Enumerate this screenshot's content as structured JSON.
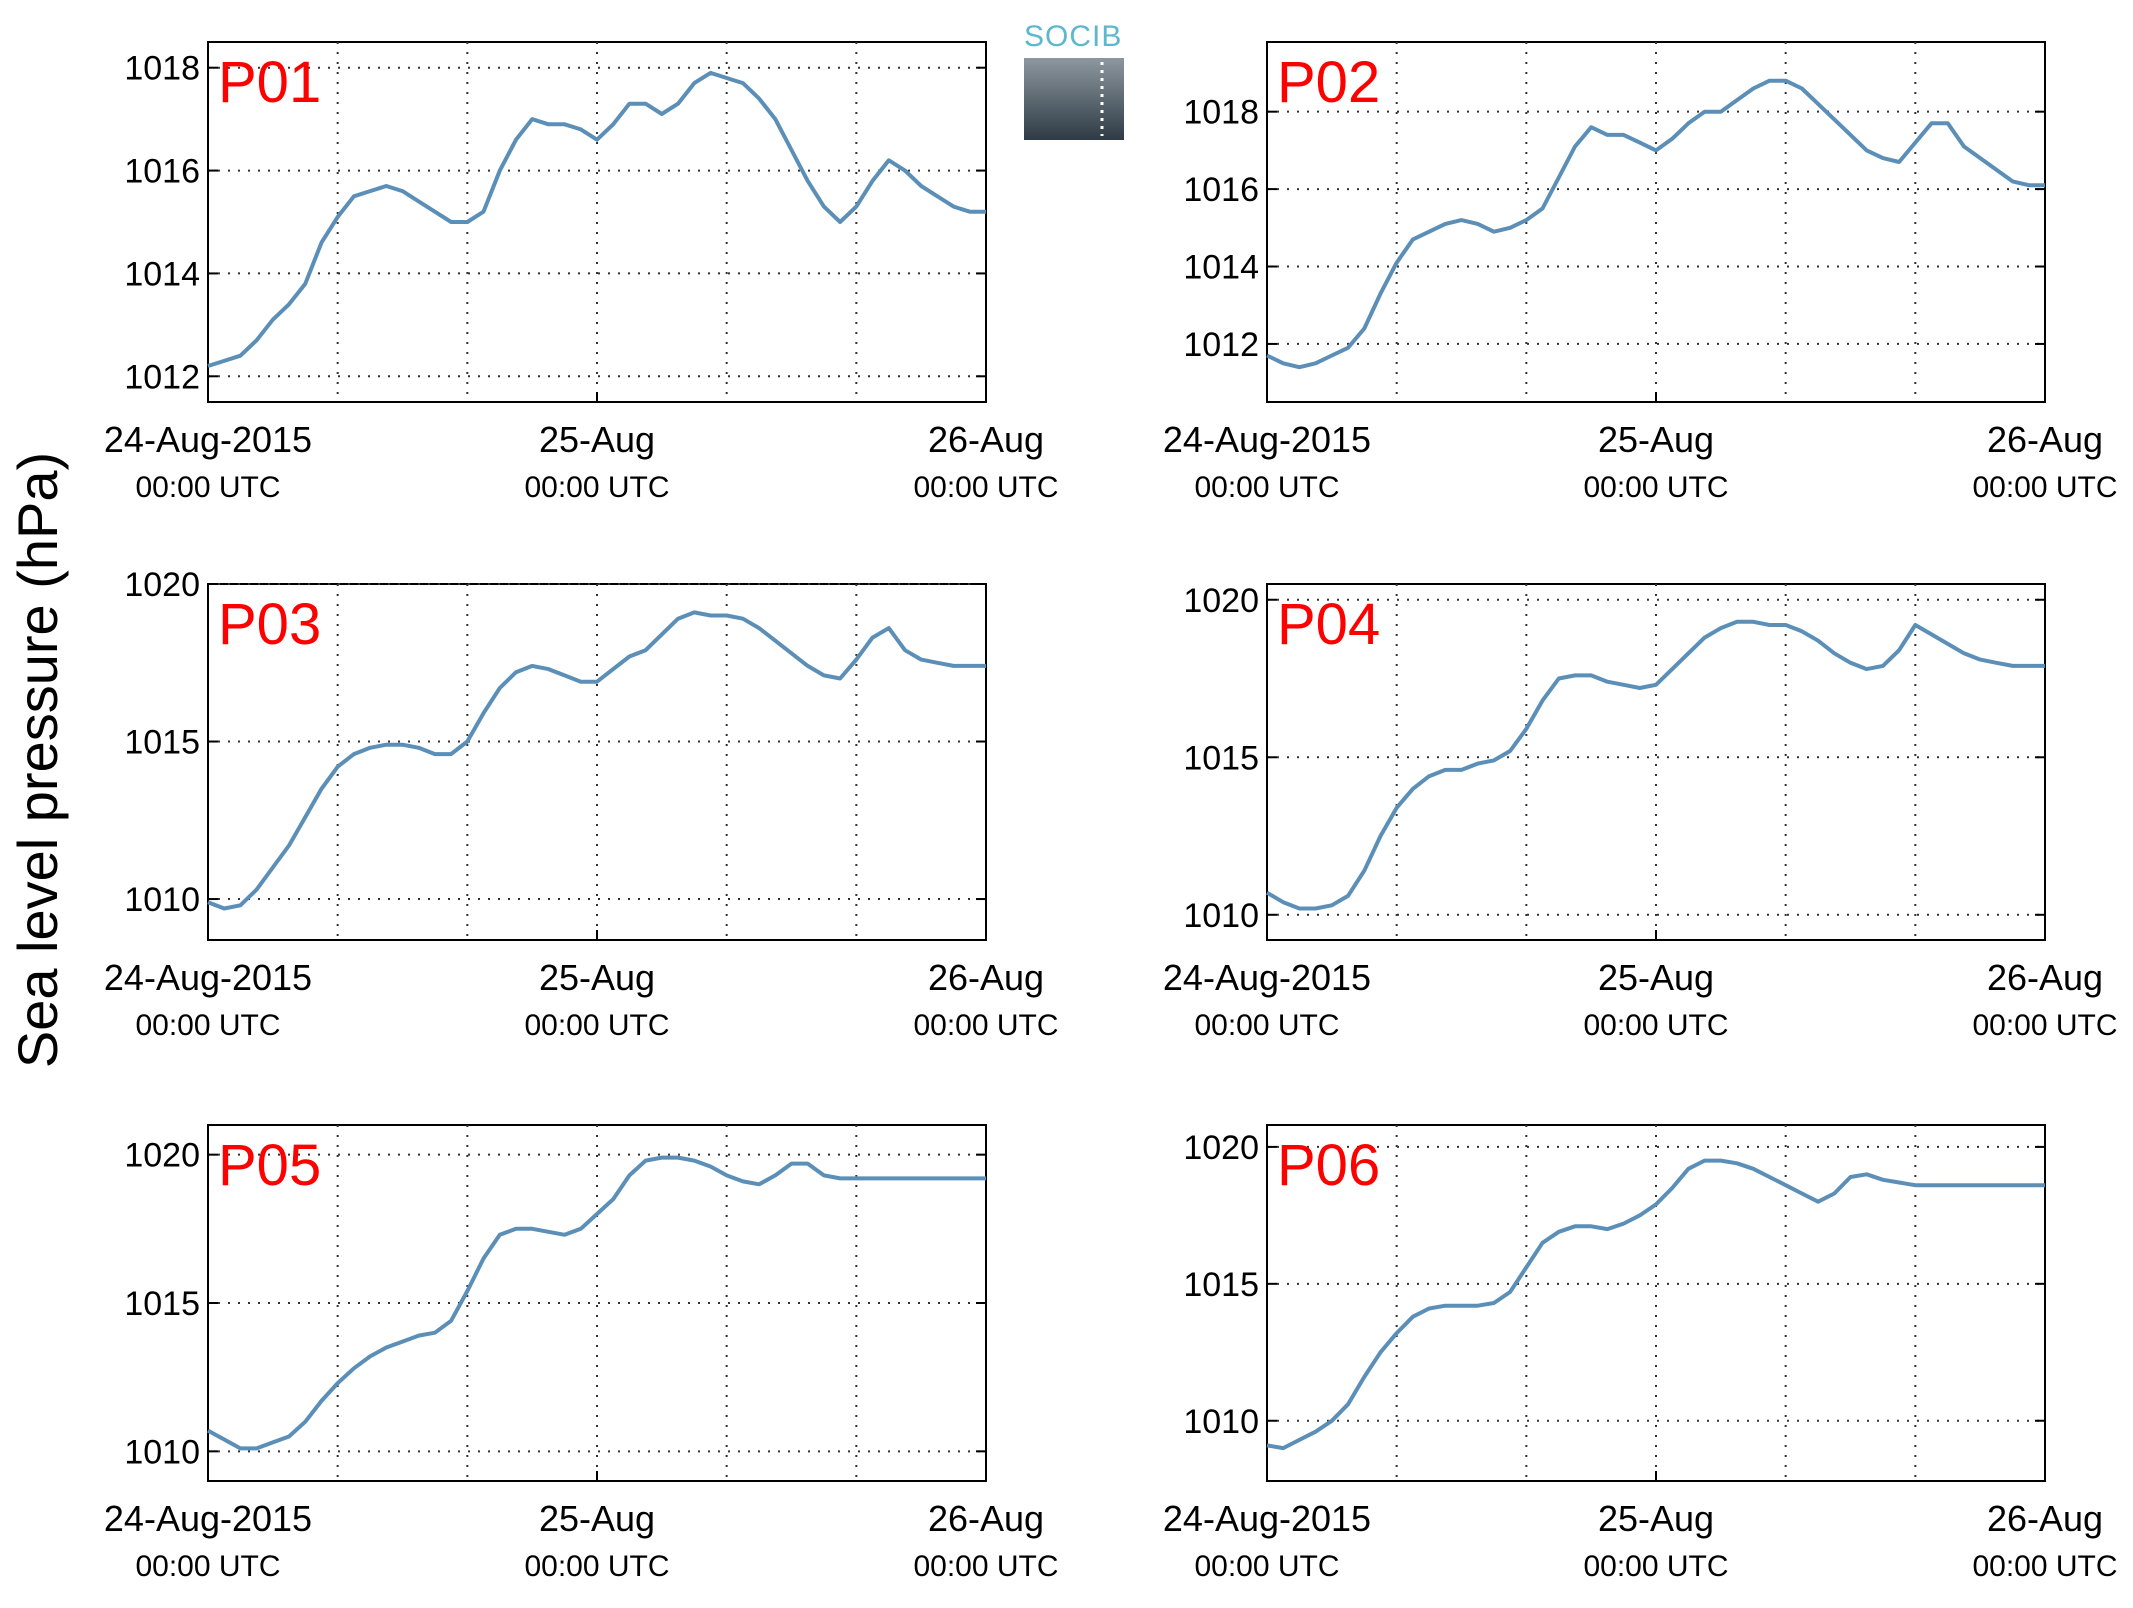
{
  "ylabel": "Sea level pressure (hPa)",
  "logo": {
    "text": "SOCIB",
    "text_color": "#5bb8cf",
    "block_top": "#8d979f",
    "block_bottom": "#2e3b45"
  },
  "colors": {
    "series": "#5b8fb8",
    "grid": "#333333",
    "panel_label": "#ff0000"
  },
  "x_ticks": [
    {
      "date": "24-Aug-2015",
      "time": "00:00 UTC",
      "x": 0
    },
    {
      "date": "25-Aug",
      "time": "00:00 UTC",
      "x": 24
    },
    {
      "date": "26-Aug",
      "time": "00:00 UTC",
      "x": 48
    }
  ],
  "chart_data": [
    {
      "type": "line",
      "name": "P01",
      "x_unit": "hours since 24-Aug-2015 00:00 UTC",
      "xlim": [
        0,
        48
      ],
      "ylim": [
        1011.5,
        1018.5
      ],
      "yticks": [
        1012,
        1014,
        1016,
        1018
      ],
      "grid": true,
      "x": [
        0,
        1,
        2,
        3,
        4,
        5,
        6,
        7,
        8,
        9,
        10,
        11,
        12,
        13,
        14,
        15,
        16,
        17,
        18,
        19,
        20,
        21,
        22,
        23,
        24,
        25,
        26,
        27,
        28,
        29,
        30,
        31,
        32,
        33,
        34,
        35,
        36,
        37,
        38,
        39,
        40,
        41,
        42,
        43,
        44,
        45,
        46,
        47,
        48
      ],
      "y": [
        1012.2,
        1012.3,
        1012.4,
        1012.7,
        1013.1,
        1013.4,
        1013.8,
        1014.6,
        1015.1,
        1015.5,
        1015.6,
        1015.7,
        1015.6,
        1015.4,
        1015.2,
        1015.0,
        1015.0,
        1015.2,
        1016.0,
        1016.6,
        1017.0,
        1016.9,
        1016.9,
        1016.8,
        1016.6,
        1016.9,
        1017.3,
        1017.3,
        1017.1,
        1017.3,
        1017.7,
        1017.9,
        1017.8,
        1017.7,
        1017.4,
        1017.0,
        1016.4,
        1015.8,
        1015.3,
        1015.0,
        1015.3,
        1015.8,
        1016.2,
        1016.0,
        1015.7,
        1015.5,
        1015.3,
        1015.2,
        1015.2
      ]
    },
    {
      "type": "line",
      "name": "P02",
      "x_unit": "hours since 24-Aug-2015 00:00 UTC",
      "xlim": [
        0,
        48
      ],
      "ylim": [
        1010.5,
        1019.8
      ],
      "yticks": [
        1012,
        1014,
        1016,
        1018
      ],
      "grid": true,
      "x": [
        0,
        1,
        2,
        3,
        4,
        5,
        6,
        7,
        8,
        9,
        10,
        11,
        12,
        13,
        14,
        15,
        16,
        17,
        18,
        19,
        20,
        21,
        22,
        23,
        24,
        25,
        26,
        27,
        28,
        29,
        30,
        31,
        32,
        33,
        34,
        35,
        36,
        37,
        38,
        39,
        40,
        41,
        42,
        43,
        44,
        45,
        46,
        47,
        48
      ],
      "y": [
        1011.7,
        1011.5,
        1011.4,
        1011.5,
        1011.7,
        1011.9,
        1012.4,
        1013.3,
        1014.1,
        1014.7,
        1014.9,
        1015.1,
        1015.2,
        1015.1,
        1014.9,
        1015.0,
        1015.2,
        1015.5,
        1016.3,
        1017.1,
        1017.6,
        1017.4,
        1017.4,
        1017.2,
        1017.0,
        1017.3,
        1017.7,
        1018.0,
        1018.0,
        1018.3,
        1018.6,
        1018.8,
        1018.8,
        1018.6,
        1018.2,
        1017.8,
        1017.4,
        1017.0,
        1016.8,
        1016.7,
        1017.2,
        1017.7,
        1017.7,
        1017.1,
        1016.8,
        1016.5,
        1016.2,
        1016.1,
        1016.1
      ]
    },
    {
      "type": "line",
      "name": "P03",
      "x_unit": "hours since 24-Aug-2015 00:00 UTC",
      "xlim": [
        0,
        48
      ],
      "ylim": [
        1008.7,
        1020.0
      ],
      "yticks": [
        1010,
        1015,
        1020
      ],
      "grid": true,
      "x": [
        0,
        1,
        2,
        3,
        4,
        5,
        6,
        7,
        8,
        9,
        10,
        11,
        12,
        13,
        14,
        15,
        16,
        17,
        18,
        19,
        20,
        21,
        22,
        23,
        24,
        25,
        26,
        27,
        28,
        29,
        30,
        31,
        32,
        33,
        34,
        35,
        36,
        37,
        38,
        39,
        40,
        41,
        42,
        43,
        44,
        45,
        46,
        47,
        48
      ],
      "y": [
        1009.9,
        1009.7,
        1009.8,
        1010.3,
        1011.0,
        1011.7,
        1012.6,
        1013.5,
        1014.2,
        1014.6,
        1014.8,
        1014.9,
        1014.9,
        1014.8,
        1014.6,
        1014.6,
        1015.0,
        1015.9,
        1016.7,
        1017.2,
        1017.4,
        1017.3,
        1017.1,
        1016.9,
        1016.9,
        1017.3,
        1017.7,
        1017.9,
        1018.4,
        1018.9,
        1019.1,
        1019.0,
        1019.0,
        1018.9,
        1018.6,
        1018.2,
        1017.8,
        1017.4,
        1017.1,
        1017.0,
        1017.6,
        1018.3,
        1018.6,
        1017.9,
        1017.6,
        1017.5,
        1017.4,
        1017.4,
        1017.4
      ]
    },
    {
      "type": "line",
      "name": "P04",
      "x_unit": "hours since 24-Aug-2015 00:00 UTC",
      "xlim": [
        0,
        48
      ],
      "ylim": [
        1009.2,
        1020.5
      ],
      "yticks": [
        1010,
        1015,
        1020
      ],
      "grid": true,
      "x": [
        0,
        1,
        2,
        3,
        4,
        5,
        6,
        7,
        8,
        9,
        10,
        11,
        12,
        13,
        14,
        15,
        16,
        17,
        18,
        19,
        20,
        21,
        22,
        23,
        24,
        25,
        26,
        27,
        28,
        29,
        30,
        31,
        32,
        33,
        34,
        35,
        36,
        37,
        38,
        39,
        40,
        41,
        42,
        43,
        44,
        45,
        46,
        47,
        48
      ],
      "y": [
        1010.7,
        1010.4,
        1010.2,
        1010.2,
        1010.3,
        1010.6,
        1011.4,
        1012.5,
        1013.4,
        1014.0,
        1014.4,
        1014.6,
        1014.6,
        1014.8,
        1014.9,
        1015.2,
        1015.9,
        1016.8,
        1017.5,
        1017.6,
        1017.6,
        1017.4,
        1017.3,
        1017.2,
        1017.3,
        1017.8,
        1018.3,
        1018.8,
        1019.1,
        1019.3,
        1019.3,
        1019.2,
        1019.2,
        1019.0,
        1018.7,
        1018.3,
        1018.0,
        1017.8,
        1017.9,
        1018.4,
        1019.2,
        1018.9,
        1018.6,
        1018.3,
        1018.1,
        1018.0,
        1017.9,
        1017.9,
        1017.9
      ]
    },
    {
      "type": "line",
      "name": "P05",
      "x_unit": "hours since 24-Aug-2015 00:00 UTC",
      "xlim": [
        0,
        48
      ],
      "ylim": [
        1009.0,
        1021.0
      ],
      "yticks": [
        1010,
        1015,
        1020
      ],
      "grid": true,
      "x": [
        0,
        1,
        2,
        3,
        4,
        5,
        6,
        7,
        8,
        9,
        10,
        11,
        12,
        13,
        14,
        15,
        16,
        17,
        18,
        19,
        20,
        21,
        22,
        23,
        24,
        25,
        26,
        27,
        28,
        29,
        30,
        31,
        32,
        33,
        34,
        35,
        36,
        37,
        38,
        39,
        40,
        41,
        42,
        43,
        44,
        45,
        46,
        47,
        48
      ],
      "y": [
        1010.7,
        1010.4,
        1010.1,
        1010.1,
        1010.3,
        1010.5,
        1011.0,
        1011.7,
        1012.3,
        1012.8,
        1013.2,
        1013.5,
        1013.7,
        1013.9,
        1014.0,
        1014.4,
        1015.4,
        1016.5,
        1017.3,
        1017.5,
        1017.5,
        1017.4,
        1017.3,
        1017.5,
        1018.0,
        1018.5,
        1019.3,
        1019.8,
        1019.9,
        1019.9,
        1019.8,
        1019.6,
        1019.3,
        1019.1,
        1019.0,
        1019.3,
        1019.7,
        1019.7,
        1019.3,
        1019.2,
        1019.2,
        1019.2,
        1019.2,
        1019.2,
        1019.2,
        1019.2,
        1019.2,
        1019.2,
        1019.2
      ]
    },
    {
      "type": "line",
      "name": "P06",
      "x_unit": "hours since 24-Aug-2015 00:00 UTC",
      "xlim": [
        0,
        48
      ],
      "ylim": [
        1007.8,
        1020.8
      ],
      "yticks": [
        1010,
        1015,
        1020
      ],
      "grid": true,
      "x": [
        0,
        1,
        2,
        3,
        4,
        5,
        6,
        7,
        8,
        9,
        10,
        11,
        12,
        13,
        14,
        15,
        16,
        17,
        18,
        19,
        20,
        21,
        22,
        23,
        24,
        25,
        26,
        27,
        28,
        29,
        30,
        31,
        32,
        33,
        34,
        35,
        36,
        37,
        38,
        39,
        40,
        41,
        42,
        43,
        44,
        45,
        46,
        47,
        48
      ],
      "y": [
        1009.1,
        1009.0,
        1009.3,
        1009.6,
        1010.0,
        1010.6,
        1011.6,
        1012.5,
        1013.2,
        1013.8,
        1014.1,
        1014.2,
        1014.2,
        1014.2,
        1014.3,
        1014.7,
        1015.6,
        1016.5,
        1016.9,
        1017.1,
        1017.1,
        1017.0,
        1017.2,
        1017.5,
        1017.9,
        1018.5,
        1019.2,
        1019.5,
        1019.5,
        1019.4,
        1019.2,
        1018.9,
        1018.6,
        1018.3,
        1018.0,
        1018.3,
        1018.9,
        1019.0,
        1018.8,
        1018.7,
        1018.6,
        1018.6,
        1018.6,
        1018.6,
        1018.6,
        1018.6,
        1018.6,
        1018.6,
        1018.6
      ]
    }
  ]
}
